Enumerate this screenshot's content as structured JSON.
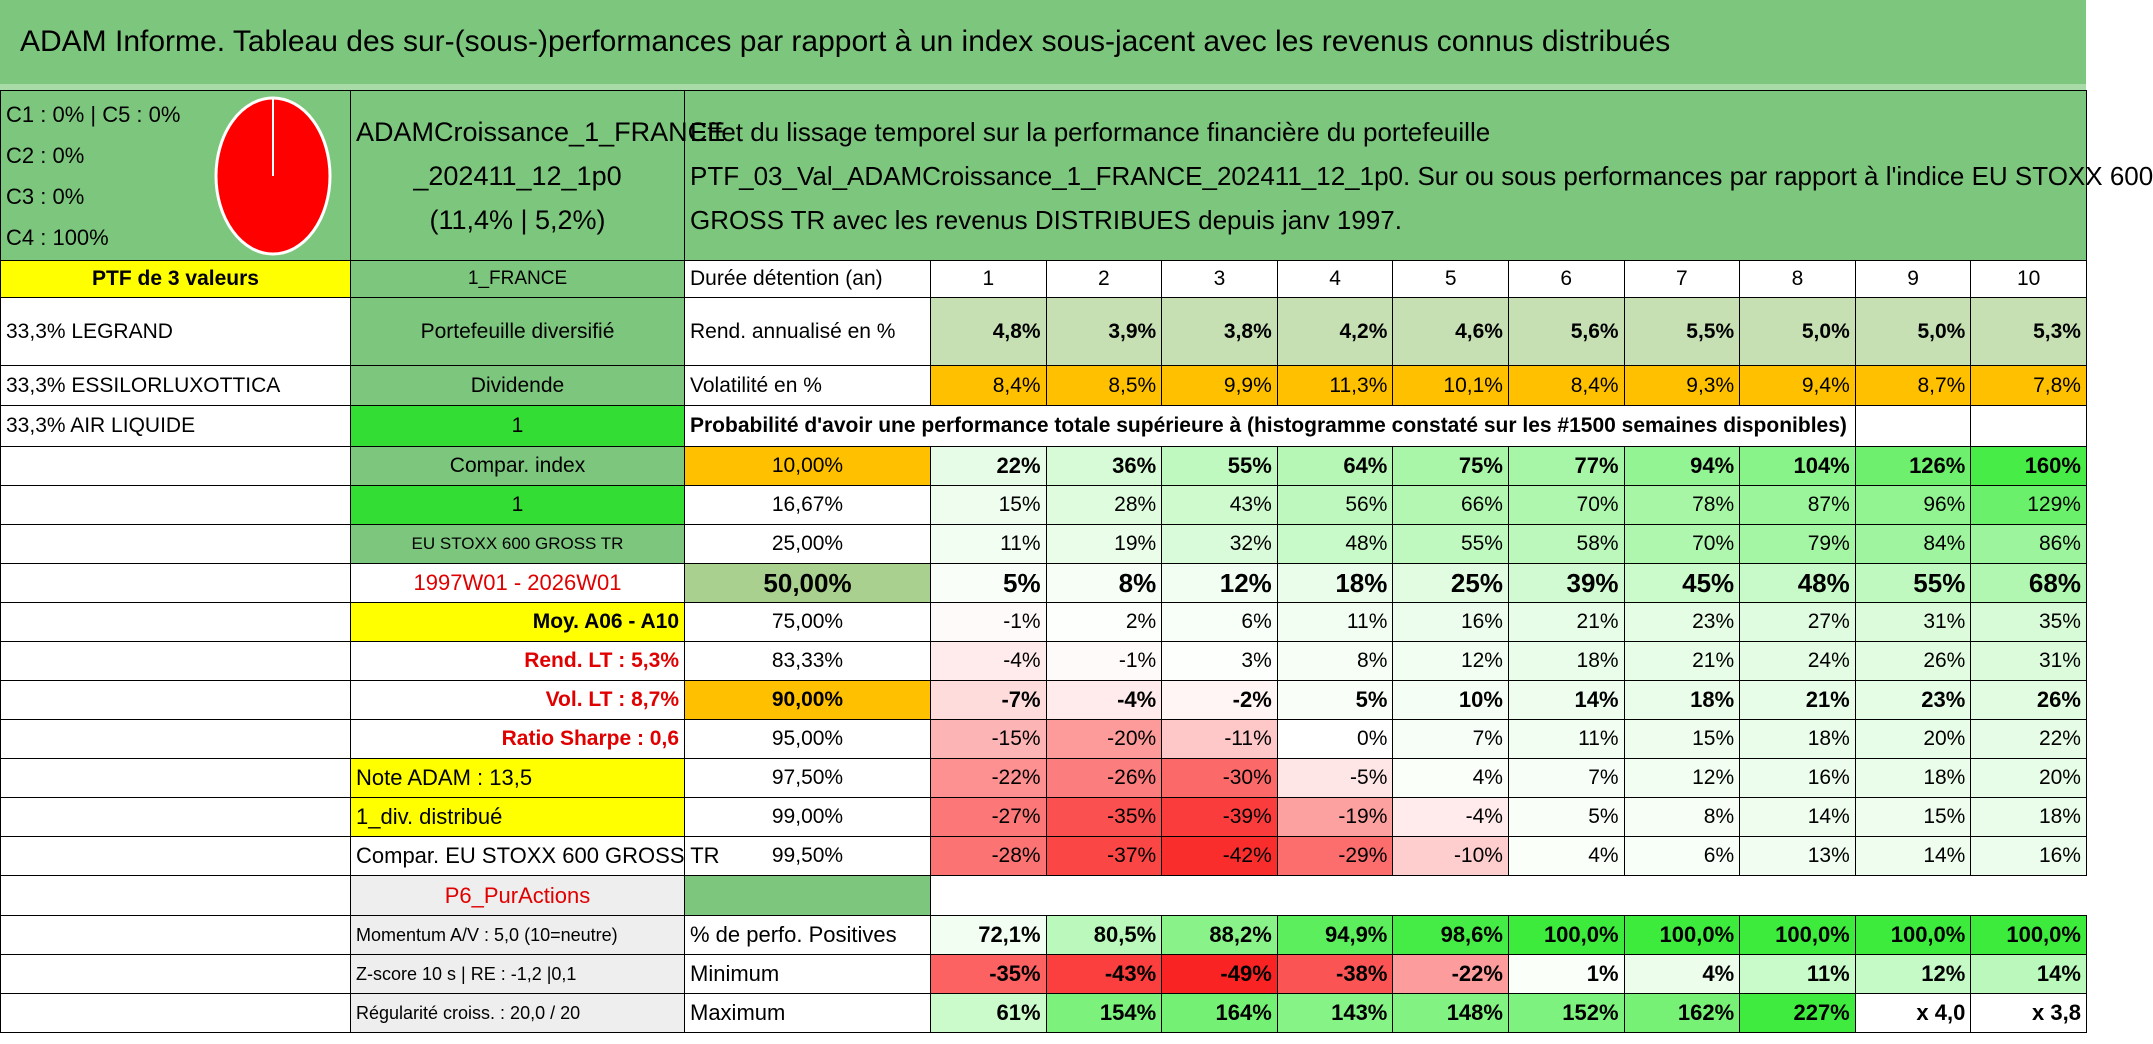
{
  "title": "ADAM Informe. Tableau des sur-(sous-)performances par rapport à un index sous-jacent avec les revenus connus distribués",
  "summary": {
    "lines": [
      "C1 : 0% | C5 : 0%",
      "C2 : 0%",
      "C3 : 0%",
      "C4 : 100%"
    ],
    "portfolio": [
      "ADAMCroissance_1_FRANCE",
      "_202411_12_1p0",
      "(11,4% | 5,2%)"
    ],
    "description": [
      "Effet du lissage temporel sur la performance financière du portefeuille",
      "PTF_03_Val_ADAMCroissance_1_FRANCE_202411_12_1p0. Sur ou sous performances par rapport à l'indice EU STOXX 600",
      "GROSS TR avec les revenus DISTRIBUES depuis janv 1997."
    ]
  },
  "table": {
    "rows": [
      [
        "PTF de 3 valeurs",
        "1_FRANCE",
        "Durée détention (an)",
        "1",
        "2",
        "3",
        "4",
        "5",
        "6",
        "7",
        "8",
        "9",
        "10"
      ],
      [
        "33,3% LEGRAND",
        "Portefeuille diversifié",
        "Rend. annualisé en %",
        "4,8%",
        "3,9%",
        "3,8%",
        "4,2%",
        "4,6%",
        "5,6%",
        "5,5%",
        "5,0%",
        "5,0%",
        "5,3%"
      ],
      [
        "33,3% ESSILORLUXOTTICA",
        "Dividende",
        "Volatilité en %",
        "8,4%",
        "8,5%",
        "9,9%",
        "11,3%",
        "10,1%",
        "8,4%",
        "9,3%",
        "9,4%",
        "8,7%",
        "7,8%"
      ],
      [
        "33,3% AIR LIQUIDE",
        "1",
        "Probabilité d'avoir une performance totale supérieure à (histogramme constaté sur les #1500 semaines disponibles)",
        null,
        null,
        null,
        null,
        null,
        null,
        null,
        null,
        null,
        null
      ],
      [
        null,
        "Compar. index",
        "10,00%",
        "22%",
        "36%",
        "55%",
        "64%",
        "75%",
        "77%",
        "94%",
        "104%",
        "126%",
        "160%"
      ],
      [
        null,
        "1",
        "16,67%",
        "15%",
        "28%",
        "43%",
        "56%",
        "66%",
        "70%",
        "78%",
        "87%",
        "96%",
        "129%"
      ],
      [
        null,
        "EU STOXX 600 GROSS TR",
        "25,00%",
        "11%",
        "19%",
        "32%",
        "48%",
        "55%",
        "58%",
        "70%",
        "79%",
        "84%",
        "86%"
      ],
      [
        null,
        "1997W01 - 2026W01",
        "50,00%",
        "5%",
        "8%",
        "12%",
        "18%",
        "25%",
        "39%",
        "45%",
        "48%",
        "55%",
        "68%"
      ],
      [
        null,
        "Moy. A06 - A10",
        "75,00%",
        "-1%",
        "2%",
        "6%",
        "11%",
        "16%",
        "21%",
        "23%",
        "27%",
        "31%",
        "35%"
      ],
      [
        null,
        "Rend. LT : 5,3%",
        "83,33%",
        "-4%",
        "-1%",
        "3%",
        "8%",
        "12%",
        "18%",
        "21%",
        "24%",
        "26%",
        "31%"
      ],
      [
        null,
        "Vol. LT : 8,7%",
        "90,00%",
        "-7%",
        "-4%",
        "-2%",
        "5%",
        "10%",
        "14%",
        "18%",
        "21%",
        "23%",
        "26%"
      ],
      [
        null,
        "Ratio Sharpe : 0,6",
        "95,00%",
        "-15%",
        "-20%",
        "-11%",
        "0%",
        "7%",
        "11%",
        "15%",
        "18%",
        "20%",
        "22%"
      ],
      [
        null,
        "Note ADAM : 13,5",
        "97,50%",
        "-22%",
        "-26%",
        "-30%",
        "-5%",
        "4%",
        "7%",
        "12%",
        "16%",
        "18%",
        "20%"
      ],
      [
        null,
        "1_div. distribué",
        "99,00%",
        "-27%",
        "-35%",
        "-39%",
        "-19%",
        "-4%",
        "5%",
        "8%",
        "14%",
        "15%",
        "18%"
      ],
      [
        null,
        "Compar. EU STOXX 600 GROSS TR",
        "99,50%",
        "-28%",
        "-37%",
        "-42%",
        "-29%",
        "-10%",
        "4%",
        "6%",
        "13%",
        "14%",
        "16%"
      ],
      [
        null,
        "P6_PurActions",
        null,
        null,
        null,
        null,
        null,
        null,
        null,
        null,
        null,
        null,
        null
      ],
      [
        null,
        "Momentum A/V : 5,0 (10=neutre)",
        "% de perfo. Positives",
        "72,1%",
        "80,5%",
        "88,2%",
        "94,9%",
        "98,6%",
        "100,0%",
        "100,0%",
        "100,0%",
        "100,0%",
        "100,0%"
      ],
      [
        null,
        "Z-score 10 s | RE : -1,2 |0,1",
        "Minimum",
        "-35%",
        "-43%",
        "-49%",
        "-38%",
        "-22%",
        "1%",
        "4%",
        "11%",
        "12%",
        "14%"
      ],
      [
        null,
        "Régularité croiss. : 20,0 / 20",
        "Maximum",
        "61%",
        "154%",
        "164%",
        "143%",
        "148%",
        "152%",
        "162%",
        "227%",
        "x 4,0",
        "x 3,8"
      ]
    ]
  }
}
